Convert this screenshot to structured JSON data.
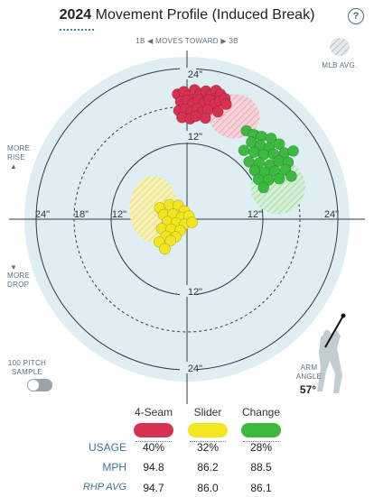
{
  "header": {
    "year": "2024",
    "title": "Movement Profile (Induced Break)",
    "help_label": "?"
  },
  "labels": {
    "moves_left": "1B",
    "moves_text": "MOVES TOWARD",
    "moves_right": "3B",
    "mlb_avg": "MLB AVG.",
    "more_rise": "MORE RISE",
    "more_drop": "MORE DROP",
    "sample": "100 PITCH SAMPLE",
    "arm_angle_label": "ARM ANGLE",
    "arm_angle_value": "57°"
  },
  "chart_data": {
    "type": "scatter",
    "units": "inches",
    "xlim": [
      -30,
      30
    ],
    "ylim": [
      -30,
      30
    ],
    "rings": [
      12,
      24
    ],
    "tick_labels": {
      "top": [
        "24\"",
        "12\""
      ],
      "bottom": [
        "12\"",
        "24\""
      ],
      "left": [
        "24\"",
        "18\"",
        "12\""
      ],
      "right": [
        "12\"",
        "24\""
      ]
    },
    "series": [
      {
        "name": "4-Seam",
        "color": "#d63151",
        "league_avg": {
          "x": 7.5,
          "y": 16.3,
          "rx": 4.0,
          "ry": 3.5
        },
        "points": [
          [
            -1.5,
            19.8
          ],
          [
            -0.5,
            20.2
          ],
          [
            0.3,
            19.6
          ],
          [
            1.2,
            20.5
          ],
          [
            2.1,
            19.9
          ],
          [
            3.0,
            20.3
          ],
          [
            3.8,
            19.7
          ],
          [
            4.6,
            20.4
          ],
          [
            5.3,
            19.8
          ],
          [
            -1.0,
            18.6
          ],
          [
            0,
            18.8
          ],
          [
            0.9,
            18.3
          ],
          [
            1.8,
            18.9
          ],
          [
            2.7,
            18.4
          ],
          [
            3.5,
            18.9
          ],
          [
            4.4,
            18.2
          ],
          [
            5.2,
            18.7
          ],
          [
            6.0,
            19.1
          ],
          [
            -1.3,
            17.2
          ],
          [
            -0.3,
            17.4
          ],
          [
            0.7,
            17.0
          ],
          [
            1.6,
            17.5
          ],
          [
            2.4,
            16.9
          ],
          [
            3.3,
            17.3
          ],
          [
            4.9,
            17.0
          ],
          [
            -0.8,
            16.1
          ],
          [
            0.5,
            15.9
          ],
          [
            1.4,
            16.3
          ],
          [
            2.9,
            16.0
          ],
          [
            6.2,
            18.2
          ]
        ]
      },
      {
        "name": "Slider",
        "color": "#f1e61f",
        "league_avg": {
          "x": -5.3,
          "y": 1.6,
          "rx": 3.8,
          "ry": 5.3
        },
        "points": [
          [
            -4.3,
            1.8
          ],
          [
            -2.8,
            2.3
          ],
          [
            -1.4,
            2.2
          ],
          [
            -0.4,
            1.3
          ],
          [
            -3.7,
            0.7
          ],
          [
            -2.2,
            0.8
          ],
          [
            -0.9,
            0.3
          ],
          [
            0.3,
            0.5
          ],
          [
            -3.1,
            -0.4
          ],
          [
            -1.7,
            -0.6
          ],
          [
            -0.4,
            -0.8
          ],
          [
            0.8,
            -0.5
          ],
          [
            -4.0,
            -1.5
          ],
          [
            -2.5,
            -1.6
          ],
          [
            -1.1,
            -1.8
          ],
          [
            -3.3,
            -2.7
          ],
          [
            -1.8,
            -2.8
          ],
          [
            -4.4,
            -3.6
          ],
          [
            -2.6,
            -3.4
          ],
          [
            -3.5,
            -4.7
          ]
        ]
      },
      {
        "name": "Change",
        "color": "#3bba3f",
        "league_avg": {
          "x": 14.4,
          "y": 5.1,
          "rx": 4.3,
          "ry": 4.3
        },
        "points": [
          [
            9.4,
            14.0
          ],
          [
            10.5,
            13.4
          ],
          [
            11.8,
            13.1
          ],
          [
            13.3,
            12.8
          ],
          [
            10.2,
            12.2
          ],
          [
            11.6,
            11.7
          ],
          [
            13.0,
            11.3
          ],
          [
            14.6,
            11.9
          ],
          [
            9.0,
            10.9
          ],
          [
            10.6,
            10.6
          ],
          [
            12.1,
            10.2
          ],
          [
            13.7,
            10.3
          ],
          [
            15.4,
            10.5
          ],
          [
            16.8,
            10.8
          ],
          [
            9.8,
            9.1
          ],
          [
            11.4,
            8.9
          ],
          [
            13.1,
            8.6
          ],
          [
            14.5,
            9.2
          ],
          [
            16.0,
            9.0
          ],
          [
            10.7,
            7.7
          ],
          [
            12.3,
            7.4
          ],
          [
            13.9,
            7.6
          ],
          [
            15.6,
            7.8
          ],
          [
            11.3,
            6.3
          ],
          [
            12.9,
            6.2
          ],
          [
            14.6,
            6.4
          ],
          [
            16.5,
            6.8
          ],
          [
            12.1,
            5.0
          ]
        ]
      }
    ]
  },
  "stats": {
    "rows": [
      {
        "label": "USAGE",
        "values": [
          "40%",
          "32%",
          "28%"
        ]
      },
      {
        "label": "MPH",
        "values": [
          "94.8",
          "86.2",
          "88.5"
        ]
      },
      {
        "label": "RHP AVG",
        "values": [
          "94.7",
          "86.0",
          "86.1"
        ]
      }
    ]
  }
}
